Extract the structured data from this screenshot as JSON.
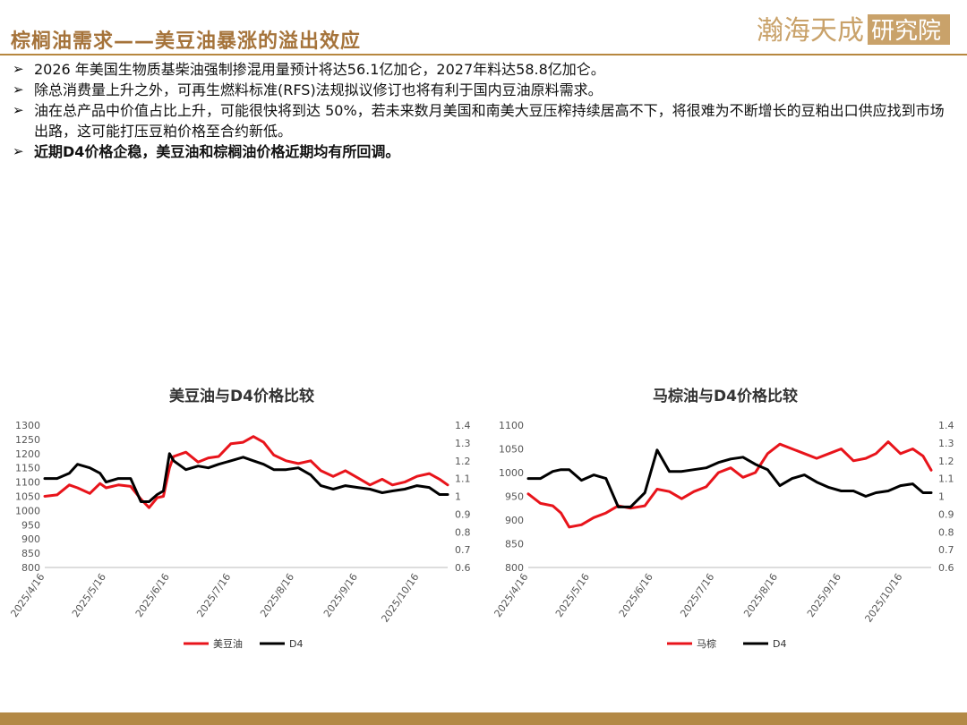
{
  "page": {
    "title": "棕榈油需求——美豆油暴涨的溢出效应",
    "logo_text": "瀚海天成研究院",
    "bullets": [
      {
        "text": "2026 年美国生物质基柴油强制掺混用量预计将达56.1亿加仑，2027年料达58.8亿加仑。",
        "bold": false
      },
      {
        "text": "除总消费量上升之外，可再生燃料标准(RFS)法规拟议修订也将有利于国内豆油原料需求。",
        "bold": false
      },
      {
        "text": "油在总产品中价值占比上升，可能很快将到达 50%，若未来数月美国和南美大豆压榨持续居高不下，将很难为不断增长的豆粕出口供应找到市场出路，这可能打压豆粕价格至合约新低。",
        "bold": false
      },
      {
        "text": "近期D4价格企稳，美豆油和棕榈油价格近期均有所回调。",
        "bold": true
      }
    ],
    "bullet_symbol": "➢",
    "colors": {
      "accent": "#a5733a",
      "red": "#e8141b",
      "black": "#000000",
      "footer": "#b38946"
    }
  },
  "chart_data": [
    {
      "type": "line",
      "title": "美豆油与D4价格比较",
      "x_ticks": [
        "2025/4/16",
        "2025/5/16",
        "2025/6/16",
        "2025/7/16",
        "2025/8/16",
        "2025/9/16",
        "2025/10/16"
      ],
      "x_range": [
        "2025-04-16",
        "2025-10-30"
      ],
      "y_left": {
        "min": 800,
        "max": 1300,
        "ticks": [
          "800",
          "850",
          "900",
          "950",
          "1000",
          "1050",
          "1100",
          "1150",
          "1200",
          "1250",
          "1300"
        ]
      },
      "y_right": {
        "min": 0.6,
        "max": 1.4,
        "ticks": [
          "0.6",
          "0.7",
          "0.8",
          "0.9",
          "1",
          "1.1",
          "1.2",
          "1.3",
          "1.4"
        ]
      },
      "grid": false,
      "legend": "bottom",
      "series": [
        {
          "name": "美豆油",
          "axis": "left",
          "color": "#e8141b",
          "x": [
            "2025-04-16",
            "2025-04-22",
            "2025-04-28",
            "2025-05-02",
            "2025-05-08",
            "2025-05-13",
            "2025-05-16",
            "2025-05-22",
            "2025-05-28",
            "2025-06-02",
            "2025-06-06",
            "2025-06-10",
            "2025-06-13",
            "2025-06-16",
            "2025-06-18",
            "2025-06-24",
            "2025-06-30",
            "2025-07-05",
            "2025-07-10",
            "2025-07-16",
            "2025-07-22",
            "2025-07-27",
            "2025-08-01",
            "2025-08-06",
            "2025-08-12",
            "2025-08-18",
            "2025-08-24",
            "2025-08-29",
            "2025-09-04",
            "2025-09-10",
            "2025-09-16",
            "2025-09-22",
            "2025-09-28",
            "2025-10-03",
            "2025-10-09",
            "2025-10-15",
            "2025-10-21",
            "2025-10-26",
            "2025-10-30"
          ],
          "y": [
            1050,
            1055,
            1090,
            1080,
            1060,
            1095,
            1080,
            1090,
            1085,
            1040,
            1010,
            1045,
            1050,
            1150,
            1190,
            1205,
            1170,
            1185,
            1190,
            1235,
            1240,
            1260,
            1240,
            1195,
            1175,
            1165,
            1175,
            1140,
            1120,
            1140,
            1115,
            1090,
            1110,
            1090,
            1100,
            1120,
            1130,
            1110,
            1090
          ]
        },
        {
          "name": "D4",
          "axis": "right",
          "color": "#000000",
          "x": [
            "2025-04-16",
            "2025-04-22",
            "2025-04-28",
            "2025-05-02",
            "2025-05-08",
            "2025-05-13",
            "2025-05-16",
            "2025-05-22",
            "2025-05-28",
            "2025-06-02",
            "2025-06-06",
            "2025-06-10",
            "2025-06-13",
            "2025-06-16",
            "2025-06-18",
            "2025-06-24",
            "2025-06-30",
            "2025-07-05",
            "2025-07-10",
            "2025-07-16",
            "2025-07-22",
            "2025-07-27",
            "2025-08-01",
            "2025-08-06",
            "2025-08-12",
            "2025-08-18",
            "2025-08-24",
            "2025-08-29",
            "2025-09-04",
            "2025-09-10",
            "2025-09-16",
            "2025-09-22",
            "2025-09-28",
            "2025-10-03",
            "2025-10-09",
            "2025-10-15",
            "2025-10-21",
            "2025-10-26",
            "2025-10-30"
          ],
          "y": [
            1.1,
            1.1,
            1.13,
            1.18,
            1.16,
            1.13,
            1.08,
            1.1,
            1.1,
            0.97,
            0.97,
            1.01,
            1.03,
            1.24,
            1.2,
            1.15,
            1.17,
            1.16,
            1.18,
            1.2,
            1.22,
            1.2,
            1.18,
            1.15,
            1.15,
            1.16,
            1.12,
            1.06,
            1.04,
            1.06,
            1.05,
            1.04,
            1.02,
            1.03,
            1.04,
            1.06,
            1.05,
            1.01,
            1.01
          ]
        }
      ]
    },
    {
      "type": "line",
      "title": "马棕油与D4价格比较",
      "x_ticks": [
        "2025/4/16",
        "2025/5/16",
        "2025/6/16",
        "2025/7/16",
        "2025/8/16",
        "2025/9/16",
        "2025/10/16"
      ],
      "x_range": [
        "2025-04-16",
        "2025-10-30"
      ],
      "y_left": {
        "min": 800,
        "max": 1100,
        "ticks": [
          "800",
          "850",
          "900",
          "950",
          "1000",
          "1050",
          "1100"
        ]
      },
      "y_right": {
        "min": 0.6,
        "max": 1.4,
        "ticks": [
          "0.6",
          "0.7",
          "0.8",
          "0.9",
          "1",
          "1.1",
          "1.2",
          "1.3",
          "1.4"
        ]
      },
      "grid": false,
      "legend": "bottom",
      "series": [
        {
          "name": "马棕",
          "axis": "left",
          "color": "#e8141b",
          "x": [
            "2025-04-16",
            "2025-04-22",
            "2025-04-28",
            "2025-05-02",
            "2025-05-06",
            "2025-05-12",
            "2025-05-18",
            "2025-05-24",
            "2025-05-30",
            "2025-06-05",
            "2025-06-12",
            "2025-06-18",
            "2025-06-24",
            "2025-06-30",
            "2025-07-06",
            "2025-07-12",
            "2025-07-18",
            "2025-07-24",
            "2025-07-30",
            "2025-08-05",
            "2025-08-11",
            "2025-08-17",
            "2025-08-23",
            "2025-08-29",
            "2025-09-04",
            "2025-09-10",
            "2025-09-16",
            "2025-09-22",
            "2025-09-28",
            "2025-10-03",
            "2025-10-09",
            "2025-10-15",
            "2025-10-21",
            "2025-10-26",
            "2025-10-30"
          ],
          "y": [
            955,
            935,
            930,
            915,
            885,
            890,
            905,
            915,
            930,
            925,
            930,
            965,
            960,
            945,
            960,
            970,
            1000,
            1010,
            990,
            1000,
            1040,
            1060,
            1050,
            1040,
            1030,
            1040,
            1050,
            1025,
            1030,
            1040,
            1065,
            1040,
            1050,
            1035,
            1005
          ]
        },
        {
          "name": "D4",
          "axis": "right",
          "color": "#000000",
          "x": [
            "2025-04-16",
            "2025-04-22",
            "2025-04-28",
            "2025-05-02",
            "2025-05-06",
            "2025-05-12",
            "2025-05-18",
            "2025-05-24",
            "2025-05-30",
            "2025-06-05",
            "2025-06-12",
            "2025-06-18",
            "2025-06-24",
            "2025-06-30",
            "2025-07-06",
            "2025-07-12",
            "2025-07-18",
            "2025-07-24",
            "2025-07-30",
            "2025-08-05",
            "2025-08-11",
            "2025-08-17",
            "2025-08-23",
            "2025-08-29",
            "2025-09-04",
            "2025-09-10",
            "2025-09-16",
            "2025-09-22",
            "2025-09-28",
            "2025-10-03",
            "2025-10-09",
            "2025-10-15",
            "2025-10-21",
            "2025-10-26",
            "2025-10-30"
          ],
          "y": [
            1.1,
            1.1,
            1.14,
            1.15,
            1.15,
            1.09,
            1.12,
            1.1,
            0.94,
            0.94,
            1.02,
            1.26,
            1.14,
            1.14,
            1.15,
            1.16,
            1.19,
            1.21,
            1.22,
            1.18,
            1.15,
            1.06,
            1.1,
            1.12,
            1.08,
            1.05,
            1.03,
            1.03,
            1.0,
            1.02,
            1.03,
            1.06,
            1.07,
            1.02,
            1.02
          ]
        }
      ]
    }
  ]
}
